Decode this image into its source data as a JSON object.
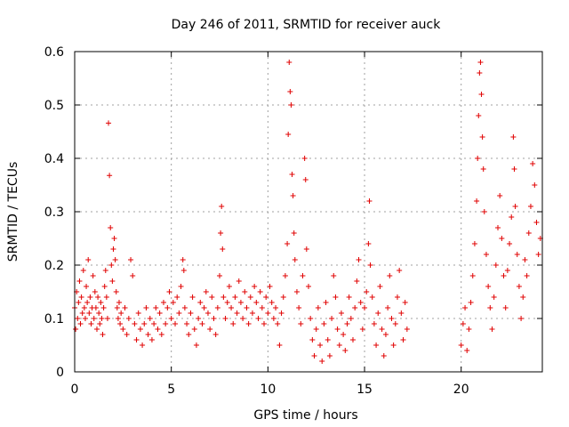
{
  "chart_data": {
    "type": "scatter",
    "title": "Day 246 of 2011, SRMTID for receiver auck",
    "xlabel": "GPS time / hours",
    "ylabel": "SRMTID / TECUs",
    "xlim": [
      0,
      24.2
    ],
    "ylim": [
      0,
      0.6
    ],
    "x_ticks": [
      0,
      5,
      10,
      15,
      20
    ],
    "x_tick_labels": [
      "0",
      "5",
      "10",
      "15",
      "20"
    ],
    "y_ticks": [
      0,
      0.1,
      0.2,
      0.3,
      0.4,
      0.5,
      0.6
    ],
    "y_tick_labels": [
      "0",
      "0.1",
      "0.2",
      "0.3",
      "0.4",
      "0.5",
      "0.6"
    ],
    "grid": true,
    "marker": "+",
    "color": "#e00000",
    "series": [
      {
        "name": "SRMTID",
        "points": [
          [
            0.0,
            0.12
          ],
          [
            0.05,
            0.08
          ],
          [
            0.1,
            0.15
          ],
          [
            0.15,
            0.1
          ],
          [
            0.2,
            0.13
          ],
          [
            0.25,
            0.17
          ],
          [
            0.3,
            0.09
          ],
          [
            0.35,
            0.14
          ],
          [
            0.4,
            0.11
          ],
          [
            0.45,
            0.19
          ],
          [
            0.5,
            0.12
          ],
          [
            0.55,
            0.1
          ],
          [
            0.6,
            0.16
          ],
          [
            0.65,
            0.13
          ],
          [
            0.7,
            0.21
          ],
          [
            0.75,
            0.11
          ],
          [
            0.8,
            0.14
          ],
          [
            0.85,
            0.09
          ],
          [
            0.9,
            0.12
          ],
          [
            0.95,
            0.18
          ],
          [
            1.0,
            0.1
          ],
          [
            1.05,
            0.15
          ],
          [
            1.1,
            0.12
          ],
          [
            1.15,
            0.08
          ],
          [
            1.2,
            0.14
          ],
          [
            1.25,
            0.11
          ],
          [
            1.3,
            0.09
          ],
          [
            1.35,
            0.13
          ],
          [
            1.4,
            0.1
          ],
          [
            1.45,
            0.07
          ],
          [
            1.5,
            0.12
          ],
          [
            1.55,
            0.16
          ],
          [
            1.6,
            0.19
          ],
          [
            1.65,
            0.14
          ],
          [
            1.7,
            0.1
          ],
          [
            1.75,
            0.466
          ],
          [
            1.8,
            0.368
          ],
          [
            1.85,
            0.27
          ],
          [
            1.9,
            0.2
          ],
          [
            1.95,
            0.17
          ],
          [
            2.0,
            0.23
          ],
          [
            2.05,
            0.25
          ],
          [
            2.1,
            0.21
          ],
          [
            2.15,
            0.15
          ],
          [
            2.2,
            0.12
          ],
          [
            2.25,
            0.1
          ],
          [
            2.3,
            0.13
          ],
          [
            2.35,
            0.09
          ],
          [
            2.4,
            0.11
          ],
          [
            2.5,
            0.08
          ],
          [
            2.6,
            0.12
          ],
          [
            2.7,
            0.07
          ],
          [
            2.8,
            0.1
          ],
          [
            2.9,
            0.21
          ],
          [
            3.0,
            0.18
          ],
          [
            3.1,
            0.09
          ],
          [
            3.2,
            0.06
          ],
          [
            3.3,
            0.11
          ],
          [
            3.4,
            0.08
          ],
          [
            3.5,
            0.05
          ],
          [
            3.6,
            0.09
          ],
          [
            3.7,
            0.12
          ],
          [
            3.8,
            0.07
          ],
          [
            3.9,
            0.1
          ],
          [
            4.0,
            0.06
          ],
          [
            4.1,
            0.09
          ],
          [
            4.2,
            0.12
          ],
          [
            4.3,
            0.08
          ],
          [
            4.4,
            0.11
          ],
          [
            4.5,
            0.07
          ],
          [
            4.6,
            0.13
          ],
          [
            4.7,
            0.09
          ],
          [
            4.8,
            0.12
          ],
          [
            4.9,
            0.15
          ],
          [
            5.0,
            0.1
          ],
          [
            5.1,
            0.13
          ],
          [
            5.2,
            0.09
          ],
          [
            5.3,
            0.14
          ],
          [
            5.4,
            0.11
          ],
          [
            5.5,
            0.16
          ],
          [
            5.6,
            0.21
          ],
          [
            5.65,
            0.19
          ],
          [
            5.7,
            0.12
          ],
          [
            5.8,
            0.09
          ],
          [
            5.9,
            0.07
          ],
          [
            6.0,
            0.11
          ],
          [
            6.1,
            0.14
          ],
          [
            6.2,
            0.08
          ],
          [
            6.3,
            0.05
          ],
          [
            6.4,
            0.1
          ],
          [
            6.5,
            0.13
          ],
          [
            6.6,
            0.09
          ],
          [
            6.7,
            0.12
          ],
          [
            6.8,
            0.15
          ],
          [
            6.9,
            0.11
          ],
          [
            7.0,
            0.08
          ],
          [
            7.1,
            0.14
          ],
          [
            7.2,
            0.1
          ],
          [
            7.3,
            0.07
          ],
          [
            7.4,
            0.12
          ],
          [
            7.5,
            0.18
          ],
          [
            7.55,
            0.26
          ],
          [
            7.6,
            0.31
          ],
          [
            7.65,
            0.23
          ],
          [
            7.7,
            0.14
          ],
          [
            7.8,
            0.1
          ],
          [
            7.9,
            0.13
          ],
          [
            8.0,
            0.16
          ],
          [
            8.1,
            0.12
          ],
          [
            8.2,
            0.09
          ],
          [
            8.3,
            0.14
          ],
          [
            8.4,
            0.11
          ],
          [
            8.5,
            0.17
          ],
          [
            8.6,
            0.13
          ],
          [
            8.7,
            0.1
          ],
          [
            8.8,
            0.15
          ],
          [
            8.9,
            0.12
          ],
          [
            9.0,
            0.09
          ],
          [
            9.1,
            0.14
          ],
          [
            9.2,
            0.11
          ],
          [
            9.3,
            0.16
          ],
          [
            9.4,
            0.13
          ],
          [
            9.5,
            0.1
          ],
          [
            9.6,
            0.15
          ],
          [
            9.7,
            0.12
          ],
          [
            9.8,
            0.09
          ],
          [
            9.9,
            0.14
          ],
          [
            10.0,
            0.11
          ],
          [
            10.1,
            0.16
          ],
          [
            10.2,
            0.13
          ],
          [
            10.3,
            0.1
          ],
          [
            10.4,
            0.12
          ],
          [
            10.5,
            0.09
          ],
          [
            10.6,
            0.05
          ],
          [
            10.7,
            0.11
          ],
          [
            10.8,
            0.14
          ],
          [
            10.9,
            0.18
          ],
          [
            11.0,
            0.24
          ],
          [
            11.05,
            0.445
          ],
          [
            11.1,
            0.58
          ],
          [
            11.15,
            0.525
          ],
          [
            11.2,
            0.5
          ],
          [
            11.25,
            0.37
          ],
          [
            11.3,
            0.33
          ],
          [
            11.35,
            0.26
          ],
          [
            11.4,
            0.21
          ],
          [
            11.5,
            0.15
          ],
          [
            11.6,
            0.12
          ],
          [
            11.7,
            0.09
          ],
          [
            11.8,
            0.18
          ],
          [
            11.9,
            0.4
          ],
          [
            11.95,
            0.36
          ],
          [
            12.0,
            0.23
          ],
          [
            12.1,
            0.16
          ],
          [
            12.2,
            0.1
          ],
          [
            12.3,
            0.06
          ],
          [
            12.4,
            0.03
          ],
          [
            12.5,
            0.08
          ],
          [
            12.6,
            0.12
          ],
          [
            12.7,
            0.05
          ],
          [
            12.8,
            0.02
          ],
          [
            12.9,
            0.09
          ],
          [
            13.0,
            0.13
          ],
          [
            13.1,
            0.06
          ],
          [
            13.2,
            0.03
          ],
          [
            13.3,
            0.1
          ],
          [
            13.4,
            0.18
          ],
          [
            13.5,
            0.14
          ],
          [
            13.6,
            0.08
          ],
          [
            13.7,
            0.05
          ],
          [
            13.8,
            0.11
          ],
          [
            13.9,
            0.07
          ],
          [
            14.0,
            0.04
          ],
          [
            14.1,
            0.09
          ],
          [
            14.2,
            0.14
          ],
          [
            14.3,
            0.1
          ],
          [
            14.4,
            0.06
          ],
          [
            14.5,
            0.12
          ],
          [
            14.6,
            0.17
          ],
          [
            14.7,
            0.21
          ],
          [
            14.8,
            0.13
          ],
          [
            14.9,
            0.08
          ],
          [
            15.0,
            0.12
          ],
          [
            15.1,
            0.15
          ],
          [
            15.2,
            0.24
          ],
          [
            15.25,
            0.32
          ],
          [
            15.3,
            0.2
          ],
          [
            15.4,
            0.14
          ],
          [
            15.5,
            0.09
          ],
          [
            15.6,
            0.05
          ],
          [
            15.7,
            0.11
          ],
          [
            15.8,
            0.16
          ],
          [
            15.9,
            0.08
          ],
          [
            16.0,
            0.03
          ],
          [
            16.1,
            0.07
          ],
          [
            16.2,
            0.12
          ],
          [
            16.3,
            0.18
          ],
          [
            16.4,
            0.1
          ],
          [
            16.5,
            0.05
          ],
          [
            16.6,
            0.09
          ],
          [
            16.7,
            0.14
          ],
          [
            16.8,
            0.19
          ],
          [
            16.9,
            0.11
          ],
          [
            17.0,
            0.06
          ],
          [
            17.1,
            0.13
          ],
          [
            17.2,
            0.08
          ],
          [
            20.0,
            0.05
          ],
          [
            20.1,
            0.09
          ],
          [
            20.2,
            0.12
          ],
          [
            20.3,
            0.04
          ],
          [
            20.4,
            0.08
          ],
          [
            20.5,
            0.13
          ],
          [
            20.6,
            0.18
          ],
          [
            20.7,
            0.24
          ],
          [
            20.8,
            0.32
          ],
          [
            20.85,
            0.4
          ],
          [
            20.9,
            0.48
          ],
          [
            20.95,
            0.56
          ],
          [
            21.0,
            0.58
          ],
          [
            21.05,
            0.52
          ],
          [
            21.1,
            0.44
          ],
          [
            21.15,
            0.38
          ],
          [
            21.2,
            0.3
          ],
          [
            21.3,
            0.22
          ],
          [
            21.4,
            0.16
          ],
          [
            21.5,
            0.12
          ],
          [
            21.6,
            0.08
          ],
          [
            21.7,
            0.14
          ],
          [
            21.8,
            0.2
          ],
          [
            21.9,
            0.27
          ],
          [
            22.0,
            0.33
          ],
          [
            22.1,
            0.25
          ],
          [
            22.2,
            0.18
          ],
          [
            22.3,
            0.12
          ],
          [
            22.4,
            0.19
          ],
          [
            22.5,
            0.24
          ],
          [
            22.6,
            0.29
          ],
          [
            22.7,
            0.44
          ],
          [
            22.75,
            0.38
          ],
          [
            22.8,
            0.31
          ],
          [
            22.9,
            0.22
          ],
          [
            23.0,
            0.16
          ],
          [
            23.1,
            0.1
          ],
          [
            23.2,
            0.14
          ],
          [
            23.3,
            0.21
          ],
          [
            23.4,
            0.18
          ],
          [
            23.5,
            0.26
          ],
          [
            23.6,
            0.31
          ],
          [
            23.7,
            0.39
          ],
          [
            23.8,
            0.35
          ],
          [
            23.9,
            0.28
          ],
          [
            24.0,
            0.22
          ],
          [
            24.1,
            0.25
          ]
        ]
      }
    ]
  }
}
